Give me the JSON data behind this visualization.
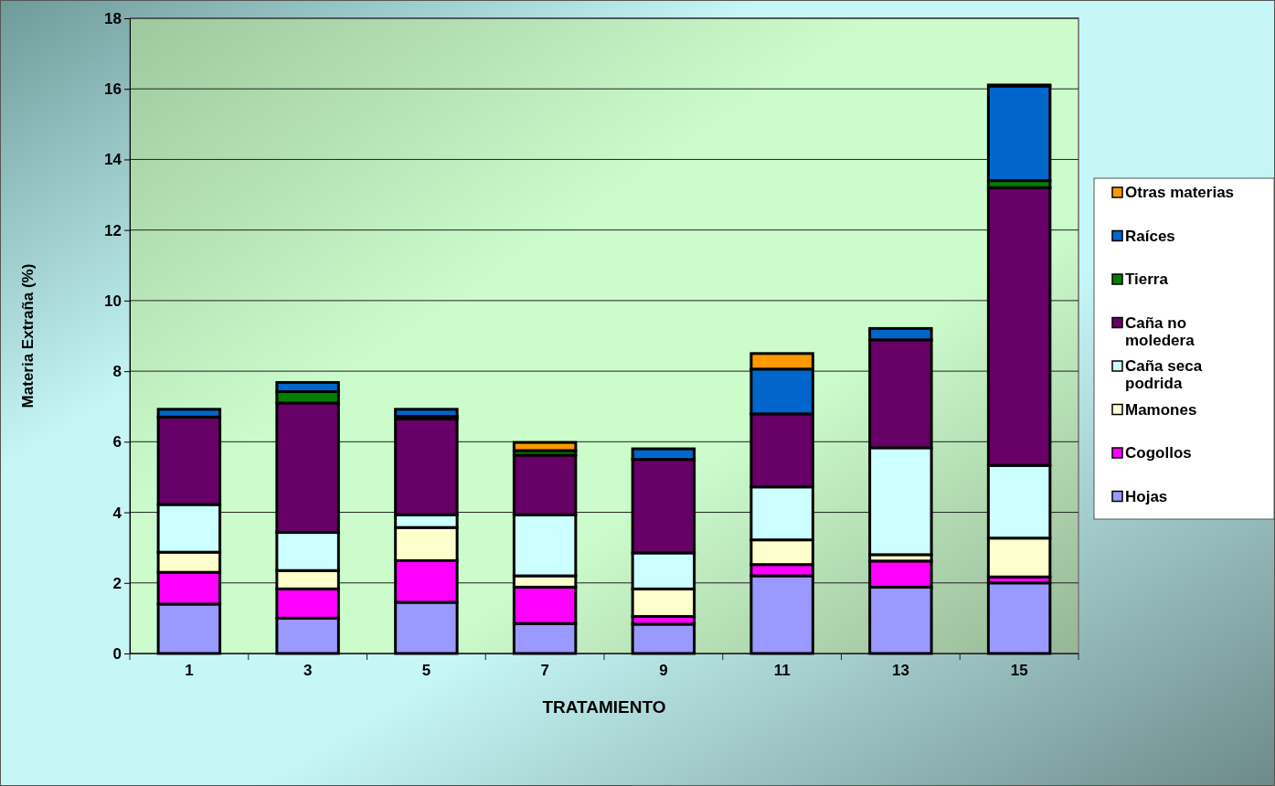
{
  "chart_data": {
    "type": "bar",
    "stacked": true,
    "xlabel": "TRATAMIENTO",
    "ylabel": "Materia Extraña (%)",
    "categories": [
      "1",
      "3",
      "5",
      "7",
      "9",
      "11",
      "13",
      "15"
    ],
    "ylim": [
      0,
      18
    ],
    "yticks": [
      0,
      2,
      4,
      6,
      8,
      10,
      12,
      14,
      16,
      18
    ],
    "grid": "y",
    "legend": "right",
    "series": [
      {
        "name": "Hojas",
        "color": "#9999ff",
        "values": [
          1.4,
          1.0,
          1.45,
          0.85,
          0.83,
          2.2,
          1.88,
          2.0
        ]
      },
      {
        "name": "Cogollos",
        "color": "#ff00ff",
        "values": [
          0.9,
          0.83,
          1.18,
          1.03,
          0.22,
          0.32,
          0.74,
          0.17
        ]
      },
      {
        "name": "Mamones",
        "color": "#ffffcc",
        "values": [
          0.57,
          0.52,
          0.94,
          0.32,
          0.78,
          0.7,
          0.18,
          1.1
        ]
      },
      {
        "name": "Caña seca podrida",
        "color": "#ccffff",
        "values": [
          1.35,
          1.08,
          0.36,
          1.73,
          1.02,
          1.5,
          3.03,
          2.06
        ]
      },
      {
        "name": "Caña no moledera",
        "color": "#660066",
        "values": [
          2.48,
          3.67,
          2.72,
          1.69,
          2.65,
          2.07,
          3.06,
          7.87
        ]
      },
      {
        "name": "Tierra",
        "color": "#008000",
        "values": [
          0,
          0.32,
          0.07,
          0.13,
          null,
          null,
          null,
          0.2
        ]
      },
      {
        "name": "Raíces",
        "color": "#0066cc",
        "values": [
          0.22,
          0.26,
          0.2,
          null,
          0.3,
          1.27,
          0.32,
          2.68
        ]
      },
      {
        "name": "Otras materias",
        "color": "#ff9900",
        "values": [
          0,
          0,
          0,
          0.23,
          0,
          0.44,
          0,
          0.03
        ]
      }
    ]
  }
}
